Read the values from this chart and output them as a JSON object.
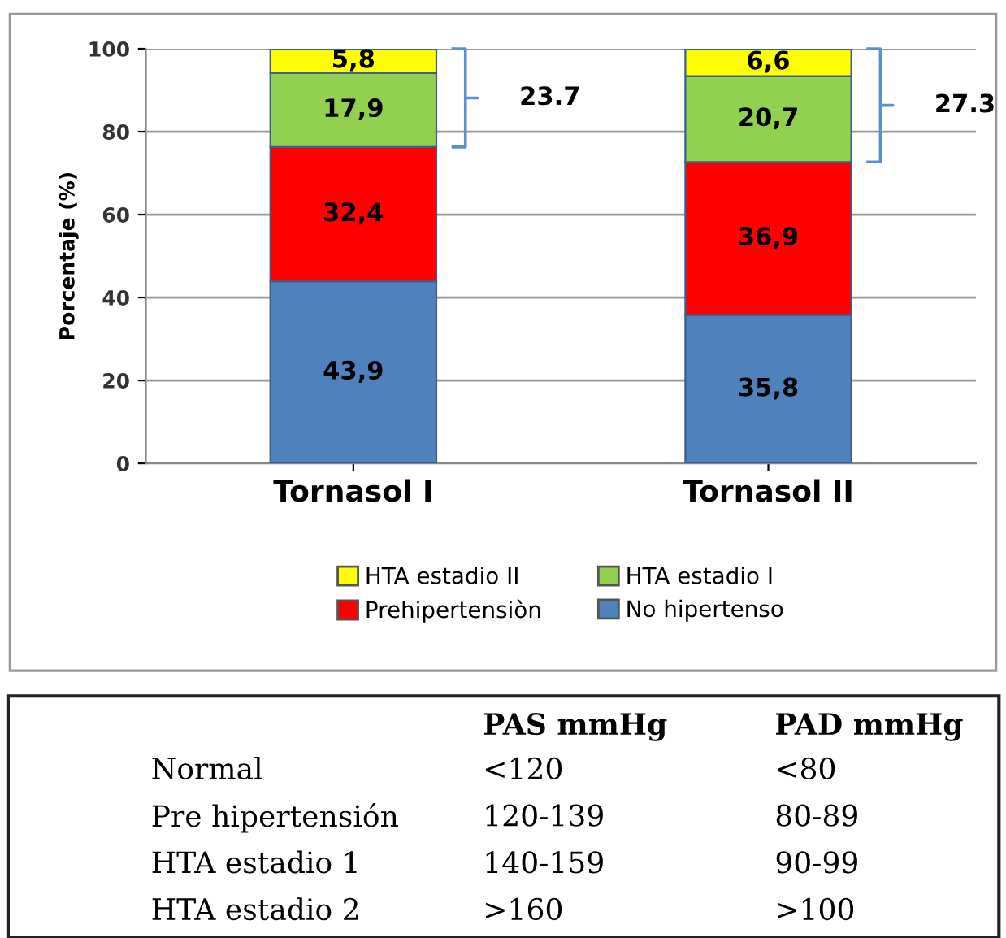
{
  "chart_data": {
    "type": "bar",
    "stacked": true,
    "ylabel": "Porcentaje (%)",
    "categories": [
      "Tornasol I",
      "Tornasol II"
    ],
    "series": [
      {
        "name": "No hipertenso",
        "color": "#4f81bd",
        "values": [
          43.9,
          35.8
        ]
      },
      {
        "name": "Prehipertensiòn",
        "color": "#ff0000",
        "values": [
          32.4,
          36.9
        ]
      },
      {
        "name": "HTA estadio I",
        "color": "#92d050",
        "values": [
          17.9,
          20.7
        ]
      },
      {
        "name": "HTA estadio II",
        "color": "#ffff00",
        "values": [
          5.8,
          6.6
        ]
      }
    ],
    "value_labels": [
      [
        "43,9",
        "35,8"
      ],
      [
        "32,4",
        "36,9"
      ],
      [
        "17,9",
        "20,7"
      ],
      [
        "5,8",
        "6,6"
      ]
    ],
    "ylim": [
      0,
      100
    ],
    "yticks": [
      0,
      20,
      40,
      60,
      80,
      100
    ],
    "grid": "y",
    "legend": "bottom",
    "annotations": [
      "23.7",
      "27.3",
      "PAS mmHg",
      "PAD mmHg",
      "Normal",
      "<120",
      "<80",
      "Pre hipertensión",
      "120-139",
      "80-89",
      "HTA estadio 1",
      "140-159",
      "90-99",
      "HTA estadio 2",
      ">160",
      ">100"
    ]
  }
}
